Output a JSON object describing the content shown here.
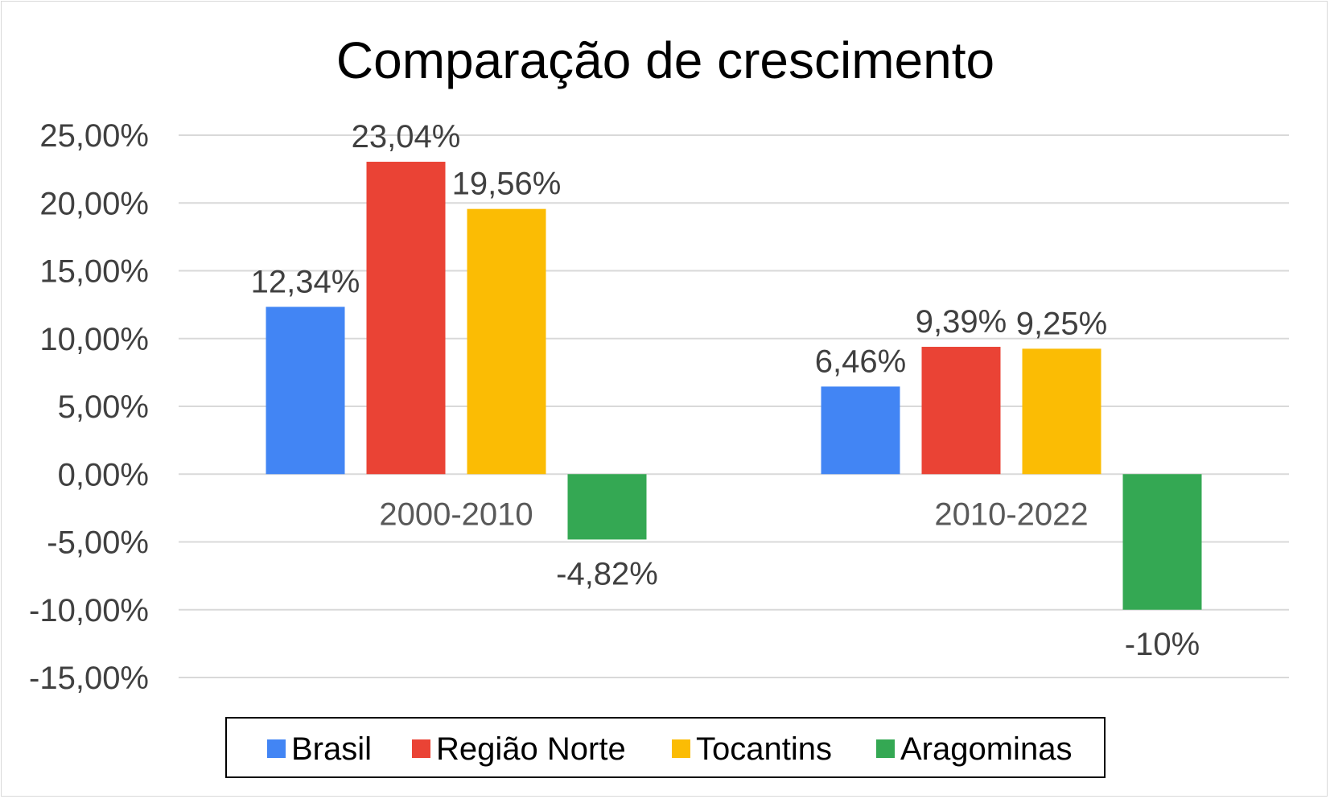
{
  "chart_data": {
    "type": "bar",
    "title": "Comparação de crescimento",
    "categories": [
      "2000-2010",
      "2010-2022"
    ],
    "series": [
      {
        "name": "Brasil",
        "color": "#4285F4",
        "values": [
          12.34,
          6.46
        ],
        "labels": [
          "12,34%",
          "6,46%"
        ]
      },
      {
        "name": "Região Norte",
        "color": "#EA4335",
        "values": [
          23.04,
          9.39
        ],
        "labels": [
          "23,04%",
          "9,39%"
        ]
      },
      {
        "name": "Tocantins",
        "color": "#FBBC04",
        "values": [
          19.56,
          9.25
        ],
        "labels": [
          "19,56%",
          "9,25%"
        ]
      },
      {
        "name": "Aragominas",
        "color": "#34A853",
        "values": [
          -4.82,
          -10
        ],
        "labels": [
          "-4,82%",
          "-10%"
        ]
      }
    ],
    "ylim": [
      -15,
      25
    ],
    "yticks": [
      25,
      20,
      15,
      10,
      5,
      0,
      -5,
      -10,
      -15
    ],
    "ytick_labels": [
      "25,00%",
      "20,00%",
      "15,00%",
      "10,00%",
      "5,00%",
      "0,00%",
      "-5,00%",
      "-10,00%",
      "-15,00%"
    ],
    "grid": true,
    "legend_position": "bottom",
    "xlabel": "",
    "ylabel": ""
  }
}
